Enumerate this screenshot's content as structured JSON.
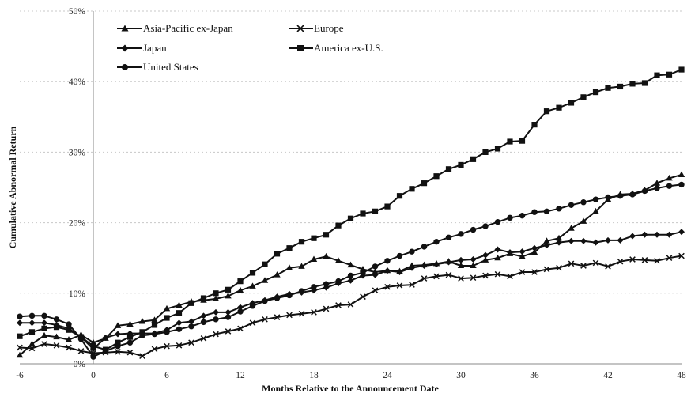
{
  "chart_data": {
    "type": "line",
    "title": "",
    "xlabel": "Months Relative to the Announcement Date",
    "ylabel": "Cumulative Abnormal Return",
    "xlim": [
      -6,
      48
    ],
    "ylim": [
      0,
      50
    ],
    "x_ticks": [
      "-6",
      "0",
      "6",
      "12",
      "18",
      "24",
      "30",
      "36",
      "42",
      "48"
    ],
    "y_ticks": [
      "0%",
      "10%",
      "20%",
      "30%",
      "40%",
      "50%"
    ],
    "grid": "horizontal-dashed",
    "legend_position": "top-left",
    "x": [
      -6,
      -5,
      -4,
      -3,
      -2,
      -1,
      0,
      1,
      2,
      3,
      4,
      5,
      6,
      7,
      8,
      9,
      10,
      11,
      12,
      13,
      14,
      15,
      16,
      17,
      18,
      19,
      20,
      21,
      22,
      23,
      24,
      25,
      26,
      27,
      28,
      29,
      30,
      31,
      32,
      33,
      34,
      35,
      36,
      37,
      38,
      39,
      40,
      41,
      42,
      43,
      44,
      45,
      46,
      47,
      48
    ],
    "series": [
      {
        "name": "Asia-Pacific ex-Japan",
        "marker": "triangle",
        "values": [
          1.2,
          2.8,
          4.0,
          3.8,
          3.4,
          4.1,
          3.0,
          3.6,
          5.4,
          5.6,
          6.0,
          6.2,
          7.8,
          8.3,
          8.8,
          9.0,
          9.2,
          9.6,
          10.4,
          11.0,
          11.8,
          12.6,
          13.6,
          13.8,
          14.8,
          15.2,
          14.6,
          14.0,
          13.4,
          13.0,
          13.2,
          13.1,
          13.9,
          14.0,
          14.2,
          14.5,
          13.9,
          13.9,
          14.7,
          15.0,
          15.6,
          15.2,
          15.8,
          17.4,
          17.8,
          19.2,
          20.2,
          21.6,
          23.3,
          24.0,
          24.1,
          24.6,
          25.6,
          26.3,
          26.8
        ]
      },
      {
        "name": "Europe",
        "marker": "x",
        "values": [
          2.3,
          2.2,
          2.8,
          2.6,
          2.3,
          1.8,
          1.5,
          1.6,
          1.7,
          1.6,
          1.1,
          2.1,
          2.5,
          2.6,
          3.0,
          3.6,
          4.2,
          4.6,
          5.0,
          5.8,
          6.3,
          6.6,
          6.9,
          7.1,
          7.3,
          7.8,
          8.3,
          8.4,
          9.5,
          10.4,
          10.9,
          11.1,
          11.2,
          12.1,
          12.4,
          12.6,
          12.1,
          12.2,
          12.5,
          12.7,
          12.4,
          13.0,
          13.0,
          13.4,
          13.6,
          14.2,
          13.9,
          14.3,
          13.8,
          14.5,
          14.8,
          14.7,
          14.6,
          15.0,
          15.3
        ]
      },
      {
        "name": "Japan",
        "marker": "diamond",
        "values": [
          5.8,
          5.8,
          5.8,
          5.5,
          5.0,
          3.8,
          2.1,
          3.7,
          4.2,
          4.3,
          4.3,
          4.3,
          4.8,
          5.8,
          6.0,
          6.8,
          7.3,
          7.3,
          8.0,
          8.6,
          9.0,
          9.5,
          9.9,
          10.1,
          10.4,
          10.8,
          11.4,
          11.8,
          12.5,
          12.6,
          13.2,
          13.0,
          13.6,
          13.9,
          14.1,
          14.4,
          14.7,
          14.8,
          15.4,
          16.2,
          15.8,
          15.9,
          16.4,
          16.8,
          17.2,
          17.4,
          17.4,
          17.2,
          17.5,
          17.5,
          18.1,
          18.3,
          18.3,
          18.3,
          18.7
        ]
      },
      {
        "name": "America ex-U.S.",
        "marker": "square",
        "values": [
          3.9,
          4.5,
          5.0,
          5.2,
          4.8,
          3.8,
          2.5,
          2.0,
          3.0,
          3.8,
          4.5,
          5.5,
          6.5,
          7.2,
          8.6,
          9.3,
          10.0,
          10.5,
          11.7,
          12.9,
          14.1,
          15.6,
          16.4,
          17.3,
          17.8,
          18.3,
          19.6,
          20.6,
          21.3,
          21.6,
          22.3,
          23.8,
          24.8,
          25.6,
          26.6,
          27.6,
          28.2,
          29.0,
          30.0,
          30.5,
          31.5,
          31.6,
          33.9,
          35.8,
          36.3,
          37.0,
          37.8,
          38.5,
          39.1,
          39.3,
          39.7,
          39.8,
          40.9,
          41.0,
          41.7
        ]
      },
      {
        "name": "United States",
        "marker": "circle",
        "values": [
          6.7,
          6.8,
          6.8,
          6.3,
          5.6,
          3.5,
          1.0,
          1.8,
          2.5,
          3.0,
          4.0,
          4.2,
          4.5,
          4.9,
          5.3,
          5.9,
          6.3,
          6.6,
          7.4,
          8.2,
          8.9,
          9.3,
          9.7,
          10.3,
          10.9,
          11.3,
          11.7,
          12.5,
          12.9,
          13.8,
          14.6,
          15.3,
          15.9,
          16.6,
          17.3,
          17.9,
          18.4,
          19.0,
          19.5,
          20.1,
          20.7,
          21.0,
          21.5,
          21.6,
          22.0,
          22.5,
          22.9,
          23.3,
          23.6,
          23.8,
          24.0,
          24.5,
          24.9,
          25.2,
          25.4
        ]
      }
    ]
  }
}
